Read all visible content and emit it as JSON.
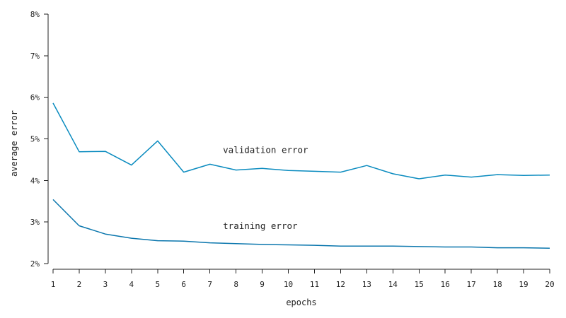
{
  "chart_data": {
    "type": "line",
    "title": "",
    "xlabel": "epochs",
    "ylabel": "average error",
    "x": [
      1,
      2,
      3,
      4,
      5,
      6,
      7,
      8,
      9,
      10,
      11,
      12,
      13,
      14,
      15,
      16,
      17,
      18,
      19,
      20
    ],
    "xlim": [
      1,
      20
    ],
    "ylim": [
      2,
      8
    ],
    "y_ticks": [
      2,
      3,
      4,
      5,
      6,
      7,
      8
    ],
    "y_tick_format": "percent",
    "grid": false,
    "series": [
      {
        "name": "validation error",
        "color": "#0a8bbf",
        "values": [
          5.86,
          4.69,
          4.7,
          4.37,
          4.95,
          4.2,
          4.39,
          4.25,
          4.29,
          4.24,
          4.22,
          4.2,
          4.36,
          4.16,
          4.04,
          4.13,
          4.08,
          4.14,
          4.12,
          4.13
        ]
      },
      {
        "name": "training error",
        "color": "#0a76ad",
        "values": [
          3.54,
          2.91,
          2.71,
          2.61,
          2.55,
          2.54,
          2.5,
          2.48,
          2.46,
          2.45,
          2.44,
          2.42,
          2.42,
          2.42,
          2.41,
          2.4,
          2.4,
          2.38,
          2.38,
          2.37
        ]
      }
    ]
  }
}
